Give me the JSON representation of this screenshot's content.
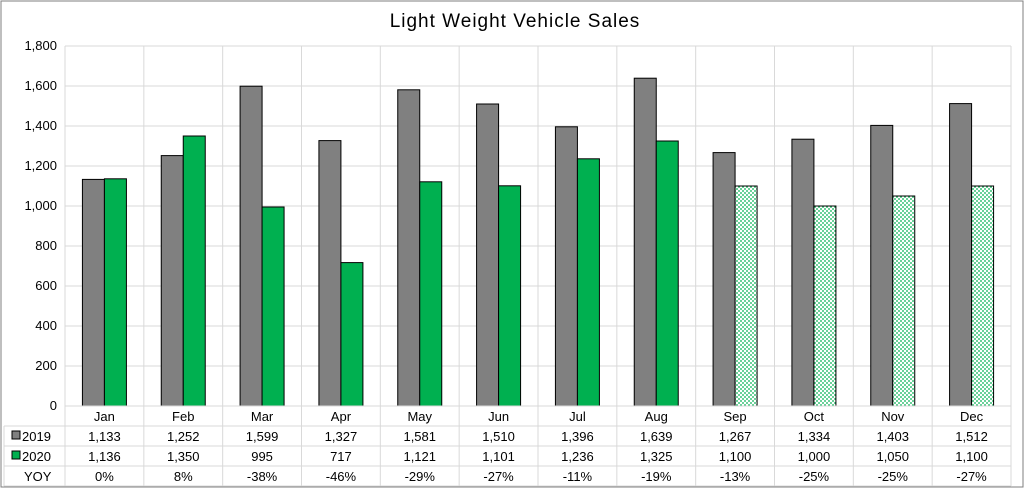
{
  "chart_data": {
    "type": "bar",
    "title": "Light Weight Vehicle Sales",
    "categories": [
      "Jan",
      "Feb",
      "Mar",
      "Apr",
      "May",
      "Jun",
      "Jul",
      "Aug",
      "Sep",
      "Oct",
      "Nov",
      "Dec"
    ],
    "ylim": [
      0,
      1800
    ],
    "yticks": [
      "1,800",
      "1,600",
      "1,400",
      "1,200",
      "1,000",
      "800",
      "600",
      "400",
      "200",
      "0"
    ],
    "ytick_values": [
      1800,
      1600,
      1400,
      1200,
      1000,
      800,
      600,
      400,
      200,
      0
    ],
    "grid": true,
    "series": [
      {
        "name": "2019",
        "color": "#808080",
        "values": [
          1133,
          1252,
          1599,
          1327,
          1581,
          1510,
          1396,
          1639,
          1267,
          1334,
          1403,
          1512
        ],
        "labels": [
          "1,133",
          "1,252",
          "1,599",
          "1,327",
          "1,581",
          "1,510",
          "1,396",
          "1,639",
          "1,267",
          "1,334",
          "1,403",
          "1,512"
        ]
      },
      {
        "name": "2020",
        "color": "#00b050",
        "forecast_pattern_from_index": 8,
        "values": [
          1136,
          1350,
          995,
          717,
          1121,
          1101,
          1236,
          1325,
          1100,
          1000,
          1050,
          1100
        ],
        "labels": [
          "1,136",
          "1,350",
          "995",
          "717",
          "1,121",
          "1,101",
          "1,236",
          "1,325",
          "1,100",
          "1,000",
          "1,050",
          "1,100"
        ]
      }
    ],
    "yoy": {
      "name": "YOY",
      "values": [
        "0%",
        "8%",
        "-38%",
        "-46%",
        "-29%",
        "-27%",
        "-11%",
        "-19%",
        "-13%",
        "-25%",
        "-25%",
        "-27%"
      ]
    }
  }
}
